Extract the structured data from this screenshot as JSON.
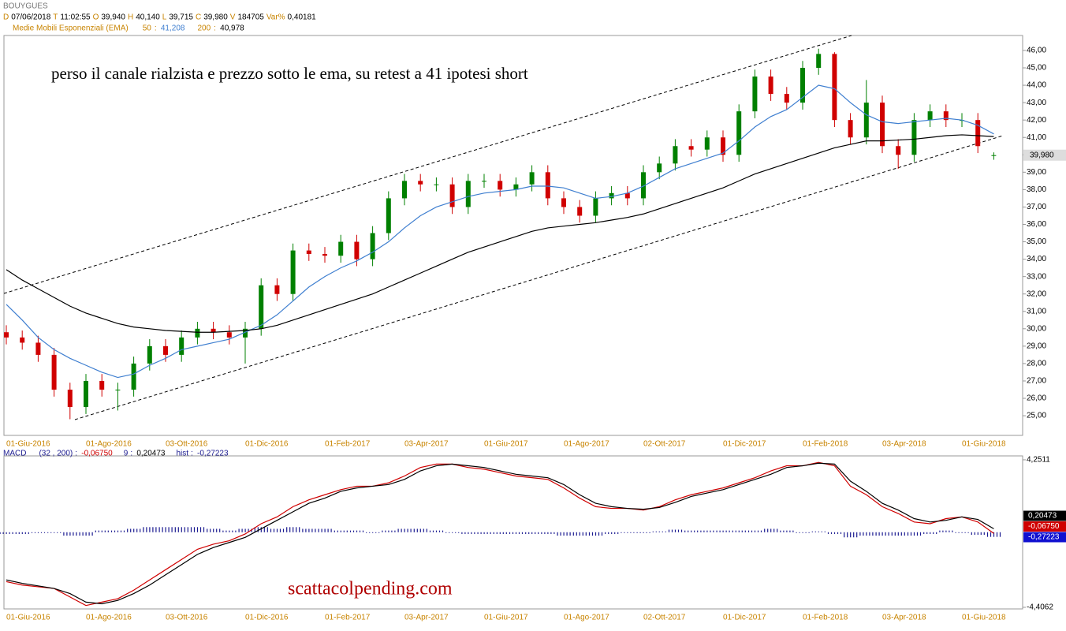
{
  "header": {
    "symbol": "BOUYGUES",
    "quote": [
      {
        "key": "D",
        "value": "07/06/2018"
      },
      {
        "key": "T",
        "value": "11:02:55"
      },
      {
        "key": "O",
        "value": "39,940"
      },
      {
        "key": "H",
        "value": "40,140"
      },
      {
        "key": "L",
        "value": "39,715"
      },
      {
        "key": "C",
        "value": "39,980"
      },
      {
        "key": "V",
        "value": "184705"
      },
      {
        "key": "Var%",
        "value": "0,40181"
      }
    ],
    "ema_title": "Medie Mobili Esponenziali (EMA)"
  },
  "chart_data": [
    {
      "type": "candlestick",
      "annotation": "perso il canale rialzista e prezzo sotto le ema, su retest a 41 ipotesi short",
      "categories": [
        "01-Giu-2016",
        null,
        null,
        null,
        null,
        "01-Ago-2016",
        null,
        null,
        null,
        null,
        "03-Ott-2016",
        null,
        null,
        null,
        null,
        "01-Dic-2016",
        null,
        null,
        null,
        null,
        "01-Feb-2017",
        null,
        null,
        null,
        null,
        "03-Apr-2017",
        null,
        null,
        null,
        null,
        "01-Giu-2017",
        null,
        null,
        null,
        null,
        "01-Ago-2017",
        null,
        null,
        null,
        null,
        "02-Ott-2017",
        null,
        null,
        null,
        null,
        "01-Dic-2017",
        null,
        null,
        null,
        null,
        "01-Feb-2018",
        null,
        null,
        null,
        null,
        "03-Apr-2018",
        null,
        null,
        null,
        null,
        "01-Giu-2018",
        null,
        null
      ],
      "open": [
        29.8,
        29.5,
        29.2,
        28.5,
        26.5,
        25.5,
        27,
        26.5,
        26.5,
        28,
        29,
        28.5,
        29.5,
        30,
        29.8,
        29.5,
        30,
        32.5,
        32,
        34.5,
        34.3,
        34.2,
        35,
        34,
        35.5,
        37.5,
        38.5,
        38.3,
        38.3,
        37,
        38.5,
        38.5,
        38,
        38.3,
        39,
        37.5,
        37,
        36.5,
        37.5,
        37.8,
        37.5,
        39,
        39.5,
        40.5,
        40.3,
        41,
        40,
        42.5,
        44.5,
        43.5,
        43,
        45,
        45.8,
        42,
        41,
        43,
        40.5,
        40,
        42,
        42.5,
        42,
        42,
        39.94
      ],
      "high": [
        30.2,
        29.9,
        29.6,
        28.9,
        26.9,
        27.4,
        27.4,
        26.9,
        28.4,
        29.4,
        29.4,
        29.9,
        30.4,
        30.4,
        30.2,
        30.4,
        32.9,
        32.9,
        34.9,
        34.9,
        34.7,
        35.4,
        35.4,
        35.9,
        37.9,
        38.9,
        38.9,
        38.7,
        38.7,
        38.9,
        38.9,
        38.9,
        38.7,
        39.4,
        39.4,
        37.9,
        37.4,
        37.9,
        38.2,
        38.2,
        39.4,
        39.9,
        40.9,
        40.9,
        41.4,
        41.4,
        42.9,
        44.9,
        44.9,
        43.9,
        45.4,
        46.1,
        45.9,
        42.4,
        44.3,
        43.4,
        40.9,
        42.4,
        42.9,
        42.9,
        42.4,
        42.4,
        40.14
      ],
      "low": [
        29.1,
        28.8,
        28.1,
        26.1,
        24.8,
        25.1,
        26.1,
        25.3,
        26.1,
        27.6,
        28.1,
        28.1,
        29.1,
        29.4,
        29.1,
        28,
        29.6,
        31.6,
        31.6,
        33.9,
        33.8,
        33.8,
        33.6,
        33.6,
        35.1,
        37.1,
        37.9,
        37.9,
        36.6,
        36.6,
        38.1,
        37.6,
        37.6,
        37.9,
        37.1,
        36.6,
        36.1,
        36.1,
        37.1,
        37.1,
        37.1,
        38.6,
        39.1,
        39.9,
        39.9,
        39.6,
        39.6,
        42.1,
        43.1,
        42.6,
        42.6,
        44.6,
        41.6,
        40.6,
        40.6,
        40.1,
        39.2,
        39.6,
        41.6,
        41.6,
        41.6,
        40.1,
        39.715
      ],
      "close": [
        29.5,
        29.2,
        28.5,
        26.5,
        25.5,
        27,
        26.5,
        26.5,
        28,
        29,
        28.5,
        29.5,
        30,
        29.8,
        29.5,
        30,
        32.5,
        32,
        34.5,
        34.3,
        34.2,
        35,
        34,
        35.5,
        37.5,
        38.5,
        38.3,
        38.3,
        37,
        38.5,
        38.5,
        38,
        38.3,
        39,
        37.5,
        37,
        36.5,
        37.5,
        37.8,
        37.5,
        39,
        39.5,
        40.5,
        40.3,
        41,
        40,
        42.5,
        44.5,
        43.5,
        43,
        45,
        45.8,
        42,
        41,
        43,
        40.5,
        40,
        42,
        42.5,
        42,
        42,
        40.5,
        39.98
      ],
      "up_color": "#008000",
      "down_color": "#d00000",
      "series": [
        {
          "name": "50",
          "color": "#3f7fd0",
          "last": {
            "value": 41.208,
            "label": "41,208"
          },
          "values": [
            31.4,
            30.5,
            29.5,
            28.8,
            28.3,
            27.9,
            27.5,
            27.2,
            27.4,
            27.9,
            28.3,
            28.8,
            29,
            29.2,
            29.4,
            29.8,
            30.2,
            30.8,
            31.6,
            32.4,
            33,
            33.5,
            33.9,
            34.4,
            35,
            35.8,
            36.5,
            37,
            37.3,
            37.6,
            37.8,
            37.9,
            38,
            38.2,
            38.2,
            38.1,
            37.8,
            37.5,
            37.6,
            37.8,
            38.2,
            38.7,
            39.2,
            39.5,
            39.8,
            40.1,
            40.8,
            41.6,
            42.2,
            42.6,
            43.3,
            44,
            43.8,
            43,
            42.3,
            41.9,
            41.8,
            41.9,
            42,
            42.1,
            42,
            41.7,
            41.2
          ]
        },
        {
          "name": "200",
          "color": "#000000",
          "last": {
            "value": 40.978,
            "label": "40,978"
          },
          "values": [
            33.4,
            32.8,
            32.3,
            31.8,
            31.3,
            30.9,
            30.6,
            30.3,
            30.1,
            30,
            29.9,
            29.85,
            29.8,
            29.8,
            29.85,
            29.9,
            30,
            30.2,
            30.5,
            30.8,
            31.1,
            31.4,
            31.7,
            32,
            32.4,
            32.8,
            33.2,
            33.6,
            34,
            34.4,
            34.7,
            35,
            35.3,
            35.6,
            35.8,
            35.9,
            36,
            36.1,
            36.25,
            36.4,
            36.6,
            36.9,
            37.2,
            37.5,
            37.8,
            38.1,
            38.5,
            38.9,
            39.2,
            39.5,
            39.8,
            40.1,
            40.4,
            40.6,
            40.8,
            40.8,
            40.85,
            40.9,
            41,
            41.1,
            41.15,
            41.1,
            41.05
          ]
        }
      ],
      "last_label": {
        "value": 39.98,
        "label": "39,980"
      },
      "ylim": [
        23.87,
        46.86
      ],
      "yticks": [
        {
          "value": 25,
          "label": "25,00"
        },
        {
          "value": 26,
          "label": "26,00"
        },
        {
          "value": 27,
          "label": "27,00"
        },
        {
          "value": 28,
          "label": "28,00"
        },
        {
          "value": 29,
          "label": "29,00"
        },
        {
          "value": 30,
          "label": "30,00"
        },
        {
          "value": 31,
          "label": "31,00"
        },
        {
          "value": 32,
          "label": "32,00"
        },
        {
          "value": 33,
          "label": "33,00"
        },
        {
          "value": 34,
          "label": "34,00"
        },
        {
          "value": 35,
          "label": "35,00"
        },
        {
          "value": 36,
          "label": "36,00"
        },
        {
          "value": 37,
          "label": "37,00"
        },
        {
          "value": 38,
          "label": "38,00"
        },
        {
          "value": 39,
          "label": "39,00"
        },
        {
          "value": 40,
          "label": "40,00"
        },
        {
          "value": 41,
          "label": "41,00"
        },
        {
          "value": 42,
          "label": "42,00"
        },
        {
          "value": 43,
          "label": "43,00"
        },
        {
          "value": 44,
          "label": "44,00"
        },
        {
          "value": 45,
          "label": "45,00"
        },
        {
          "value": 46,
          "label": "46,00"
        }
      ]
    },
    {
      "type": "macd",
      "title": "MACD",
      "annotation": "scattacolpending.com",
      "series": [
        {
          "name": "(32 , 200)",
          "color": "#d00000",
          "last": {
            "value": -0.0675,
            "label": "-0,06750"
          },
          "values": [
            -2.9,
            -3.1,
            -3.2,
            -3.3,
            -3.8,
            -4.3,
            -4.1,
            -3.9,
            -3.4,
            -2.8,
            -2.2,
            -1.6,
            -1.0,
            -0.7,
            -0.5,
            -0.1,
            0.5,
            0.9,
            1.5,
            1.9,
            2.2,
            2.5,
            2.7,
            2.7,
            2.9,
            3.3,
            3.8,
            4.0,
            4.0,
            3.8,
            3.7,
            3.5,
            3.3,
            3.2,
            3.1,
            2.6,
            2.0,
            1.5,
            1.4,
            1.4,
            1.3,
            1.5,
            1.9,
            2.2,
            2.4,
            2.6,
            2.9,
            3.2,
            3.6,
            3.9,
            3.9,
            4.1,
            3.9,
            2.7,
            2.2,
            1.5,
            1.1,
            0.6,
            0.5,
            0.8,
            0.9,
            0.6,
            -0.0675
          ]
        },
        {
          "name": "9",
          "color": "#000000",
          "last": {
            "value": 0.20473,
            "label": "0,20473"
          },
          "values": [
            -2.8,
            -3.0,
            -3.15,
            -3.3,
            -3.6,
            -4.1,
            -4.2,
            -4.0,
            -3.6,
            -3.1,
            -2.5,
            -1.9,
            -1.3,
            -0.9,
            -0.6,
            -0.3,
            0.2,
            0.7,
            1.2,
            1.7,
            2.0,
            2.4,
            2.6,
            2.7,
            2.8,
            3.1,
            3.6,
            3.9,
            4.0,
            3.9,
            3.8,
            3.6,
            3.4,
            3.3,
            3.2,
            2.8,
            2.2,
            1.7,
            1.5,
            1.4,
            1.35,
            1.45,
            1.75,
            2.1,
            2.3,
            2.5,
            2.8,
            3.1,
            3.4,
            3.8,
            3.9,
            4.05,
            4.0,
            3.0,
            2.4,
            1.7,
            1.3,
            0.8,
            0.6,
            0.7,
            0.9,
            0.75,
            0.20473
          ]
        },
        {
          "name": "hist",
          "color": "#1a1a90",
          "last": {
            "value": -0.27223,
            "label": "-0,27223"
          },
          "values": [
            -0.1,
            -0.1,
            -0.05,
            0,
            -0.2,
            -0.2,
            0.1,
            0.1,
            0.2,
            0.3,
            0.3,
            0.3,
            0.3,
            0.2,
            0.1,
            0.2,
            0.3,
            0.2,
            0.3,
            0.2,
            0.2,
            0.1,
            0.1,
            0,
            0.1,
            0.2,
            0.2,
            0.1,
            0,
            -0.1,
            -0.1,
            -0.1,
            -0.1,
            -0.1,
            -0.1,
            -0.2,
            -0.2,
            -0.2,
            -0.1,
            0,
            -0.05,
            0.05,
            0.15,
            0.1,
            0.1,
            0.1,
            0.1,
            0.1,
            0.2,
            0.1,
            0,
            0.05,
            -0.1,
            -0.3,
            -0.2,
            -0.2,
            -0.2,
            -0.2,
            -0.1,
            0.1,
            0,
            -0.15,
            -0.27223
          ]
        }
      ],
      "ylim": [
        -4.5,
        4.48
      ],
      "yticks": [
        {
          "value": 4.2511,
          "label": "4,2511"
        },
        {
          "value": -4.4062,
          "label": "-4,4062"
        }
      ]
    }
  ]
}
